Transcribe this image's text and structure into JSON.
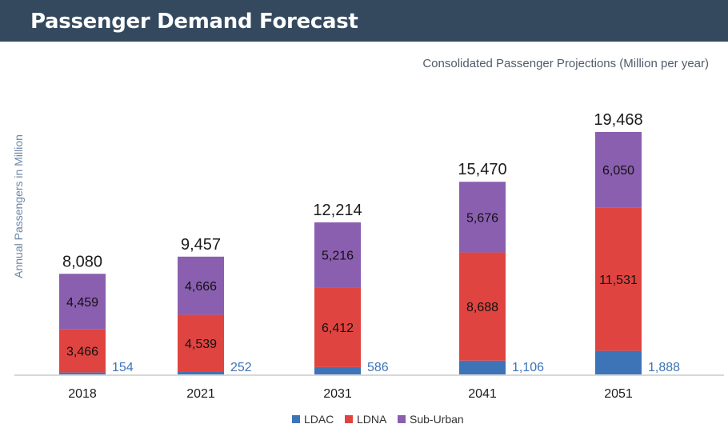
{
  "header": {
    "title": "Passenger Demand Forecast"
  },
  "chart_data": {
    "type": "bar",
    "stacked": true,
    "subtitle": "Consolidated Passenger Projections (Million per year)",
    "ylabel": "Annual Passengers in Million",
    "xlabel": "",
    "categories": [
      "2018",
      "2021",
      "2031",
      "2041",
      "2051"
    ],
    "series": [
      {
        "name": "LDAC",
        "color": "#3d74b8",
        "values": [
          154,
          252,
          586,
          1106,
          1888
        ],
        "labels": [
          "154",
          "252",
          "586",
          "1,106",
          "1,888"
        ]
      },
      {
        "name": "LDNA",
        "color": "#e04440",
        "values": [
          3466,
          4539,
          6412,
          8688,
          11531
        ],
        "labels": [
          "3,466",
          "4,539",
          "6,412",
          "8,688",
          "11,531"
        ]
      },
      {
        "name": "Sub-Urban",
        "color": "#8b5fb0",
        "values": [
          4459,
          4666,
          5216,
          5676,
          6050
        ],
        "labels": [
          "4,459",
          "4,666",
          "5,216",
          "5,676",
          "6,050"
        ]
      }
    ],
    "totals": [
      "8,080",
      "9,457",
      "12,214",
      "15,470",
      "19,468"
    ],
    "ylim": [
      0,
      21000
    ],
    "grid": false,
    "legend": "bottom-center"
  }
}
